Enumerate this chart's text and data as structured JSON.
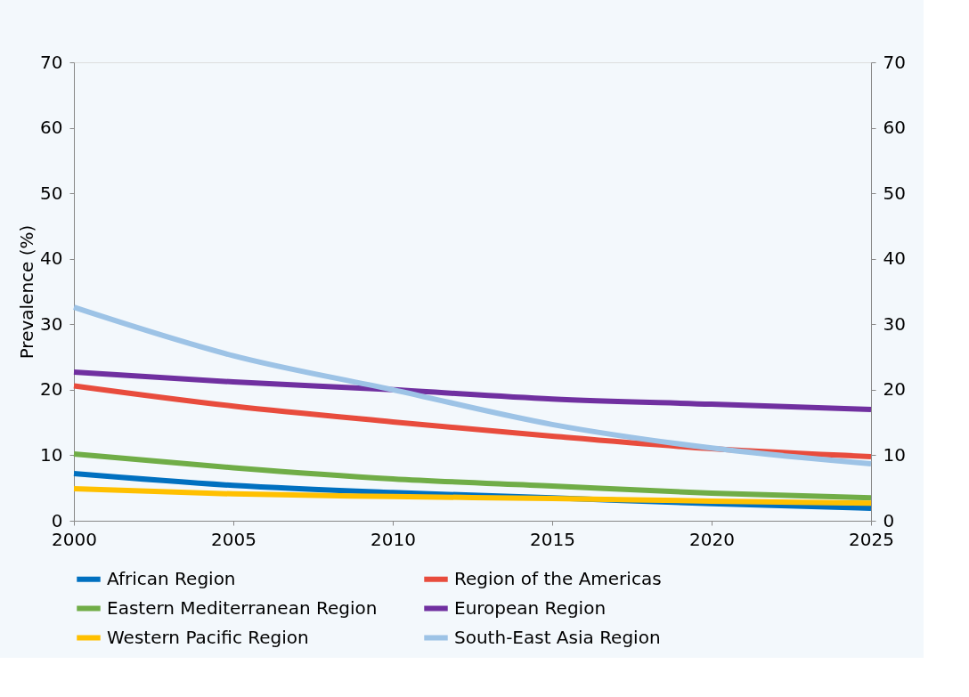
{
  "chart_data": {
    "type": "line",
    "ylabel": "Prevalence (%)",
    "x": [
      2000,
      2005,
      2010,
      2015,
      2020,
      2025
    ],
    "xlim": [
      2000,
      2025
    ],
    "xticks": [
      2000,
      2005,
      2010,
      2015,
      2020,
      2025
    ],
    "ylim": [
      0,
      70
    ],
    "yticks": [
      0,
      10,
      20,
      30,
      40,
      50,
      60,
      70
    ],
    "y2lim": [
      0,
      70
    ],
    "y2ticks": [
      0,
      10,
      20,
      30,
      40,
      50,
      60,
      70
    ],
    "grid": false,
    "legend": "bottom",
    "marker": "none",
    "line_style": "solid",
    "series": [
      {
        "name": "African Region",
        "color": "#0070c0",
        "values": [
          7.2,
          5.4,
          4.3,
          3.5,
          2.6,
          1.9
        ]
      },
      {
        "name": "Region of the Americas",
        "color": "#e84c3d",
        "values": [
          20.6,
          17.5,
          15.1,
          12.9,
          11.0,
          9.8
        ]
      },
      {
        "name": "Eastern Mediterranean Region",
        "color": "#70ad47",
        "values": [
          10.2,
          8.1,
          6.4,
          5.3,
          4.2,
          3.5
        ]
      },
      {
        "name": "European Region",
        "color": "#7030a0",
        "values": [
          22.7,
          21.2,
          20.0,
          18.6,
          17.8,
          17.0
        ]
      },
      {
        "name": "Western Pacific Region",
        "color": "#ffc000",
        "values": [
          4.9,
          4.1,
          3.7,
          3.4,
          3.0,
          2.7
        ]
      },
      {
        "name": "South-East Asia Region",
        "color": "#9dc3e6",
        "values": [
          32.6,
          25.2,
          20.0,
          14.7,
          11.1,
          8.7
        ]
      }
    ]
  }
}
